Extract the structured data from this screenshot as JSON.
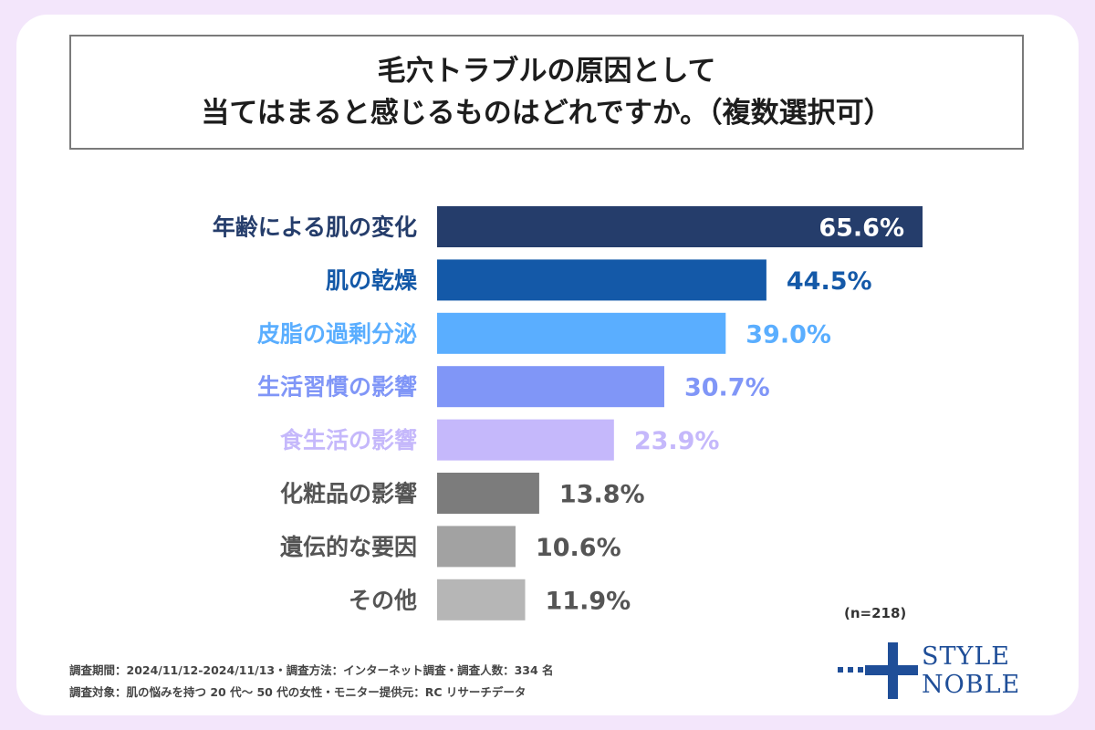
{
  "title": {
    "line1": "毛穴トラブルの原因として",
    "line2": "当てはまると感じるものはどれですか。（複数選択可）"
  },
  "chart_data": {
    "type": "bar",
    "orientation": "horizontal",
    "title": "毛穴トラブルの原因として当てはまると感じるものはどれですか。（複数選択可）",
    "unit": "%",
    "categories": [
      "年齢による肌の変化",
      "肌の乾燥",
      "皮脂の過剰分泌",
      "生活習慣の影響",
      "食生活の影響",
      "化粧品の影響",
      "遺伝的な要因",
      "その他"
    ],
    "values": [
      65.6,
      44.5,
      39.0,
      30.7,
      23.9,
      13.8,
      10.6,
      11.9
    ],
    "value_labels": [
      "65.6%",
      "44.5%",
      "39.0%",
      "30.7%",
      "23.9%",
      "13.8%",
      "10.6%",
      "11.9%"
    ],
    "colors": [
      "#253d6b",
      "#1459a8",
      "#5aaeff",
      "#8096f7",
      "#c5b8fb",
      "#7c7c7c",
      "#a2a2a2",
      "#b6b6b6"
    ],
    "label_colors": [
      "#253d6b",
      "#1459a8",
      "#5aaeff",
      "#8096f7",
      "#c5b8fb",
      "#555555",
      "#555555",
      "#555555"
    ],
    "grid": false,
    "legend": "none"
  },
  "sample_note": "(n=218)",
  "footnotes": {
    "line1": "調査期間：2024/11/12-2024/11/13・調査方法：インターネット調査・調査人数：334 名",
    "line2": "調査対象：肌の悩みを持つ 20 代〜 50 代の女性・モニター提供元：RC リサーチデータ"
  },
  "logo": {
    "line1": "STYLE",
    "line2": "NOBLE",
    "icon": "plus-with-dots-logo",
    "color": "#1f4e98"
  }
}
